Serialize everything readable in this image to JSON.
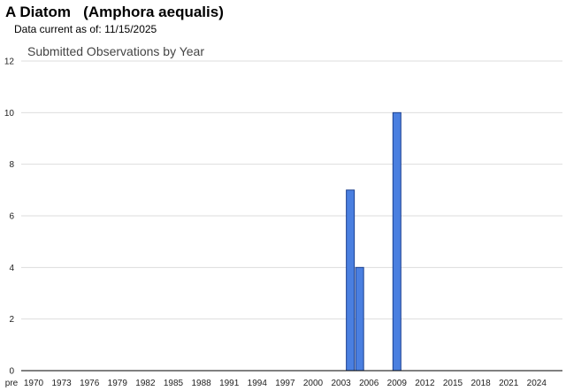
{
  "header": {
    "title": "A Diatom   (Amphora aequalis)",
    "data_current_label": "Data current as of:",
    "data_current_date": "11/15/2025"
  },
  "chart_data": {
    "type": "bar",
    "title": "Submitted Observations by Year",
    "xlabel": "",
    "ylabel": "",
    "ylim": [
      0,
      12
    ],
    "y_ticks": [
      0,
      2,
      4,
      6,
      8,
      10,
      12
    ],
    "x_tick_labels": [
      "pre",
      "1970",
      "1973",
      "1976",
      "1979",
      "1982",
      "1985",
      "1988",
      "1991",
      "1994",
      "1997",
      "2000",
      "2003",
      "2006",
      "2009",
      "2012",
      "2015",
      "2018",
      "2021",
      "2024"
    ],
    "categories": [
      "2004",
      "2005",
      "2009"
    ],
    "values": [
      7,
      4,
      10
    ],
    "grid": true,
    "bar_color": "#4a7fe0",
    "bar_edge_color": "#1a3f8f"
  }
}
